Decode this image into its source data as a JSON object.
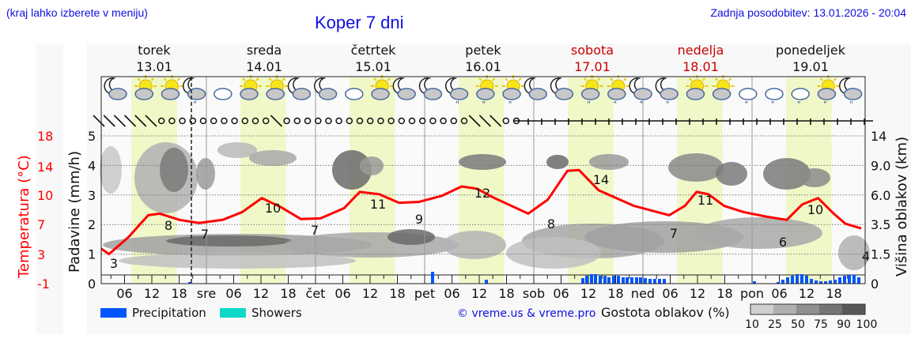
{
  "header": {
    "hint": "(kraj lahko izberete v meniju)",
    "title": "Koper 7 dni",
    "updated": "Zadnja posodobitev: 13.01.2026 - 20:04"
  },
  "days": [
    {
      "name": "torek",
      "date": "13.01",
      "weekend": false
    },
    {
      "name": "sreda",
      "date": "14.01",
      "weekend": false
    },
    {
      "name": "četrtek",
      "date": "15.01",
      "weekend": false
    },
    {
      "name": "petek",
      "date": "16.01",
      "weekend": false
    },
    {
      "name": "sobota",
      "date": "17.01",
      "weekend": true
    },
    {
      "name": "nedelja",
      "date": "18.01",
      "weekend": true
    },
    {
      "name": "ponedeljek",
      "date": "19.01",
      "weekend": false
    }
  ],
  "axes": {
    "temp_label": "Temperatura (°C)",
    "temp_ticks": [
      "18",
      "14",
      "10",
      "7",
      "3",
      "-1"
    ],
    "precip_label": "Padavine (mm/h)",
    "precip_ticks": [
      "5",
      "4",
      "3",
      "2",
      "1",
      "0"
    ],
    "cloud_label": "Višina oblakov (km)",
    "cloud_ticks": [
      "14",
      "9.0",
      "6.0",
      "3.5",
      "1.5",
      "0"
    ],
    "x_ticks": [
      "06",
      "12",
      "18",
      "sre",
      "06",
      "12",
      "18",
      "čet",
      "06",
      "12",
      "18",
      "pet",
      "06",
      "12",
      "18",
      "sob",
      "06",
      "12",
      "18",
      "ned",
      "06",
      "12",
      "18",
      "pon",
      "06",
      "12",
      "18"
    ]
  },
  "legend": {
    "precipitation": "Precipitation",
    "showers": "Showers",
    "copyright": "© vreme.us & vreme.pro",
    "density_label": "Gostota oblakov (%)",
    "density_ticks": [
      "10",
      "25",
      "50",
      "75",
      "90",
      "100"
    ],
    "precip_color": "#0055ff",
    "showers_color": "#10d8c8"
  },
  "colors": {
    "temp_line": "#ff0000",
    "day_band": "#f0f8c8",
    "weekend_text": "#cc0000",
    "header_blue": "#1010e0"
  },
  "chart_data": {
    "type": "line",
    "title": "Koper 7 dni",
    "xlabel": "",
    "ylabel": "Temperatura (°C)",
    "ylim": [
      -1,
      18
    ],
    "temperature_labels": [
      {
        "time": "13.01 02h",
        "value": 3
      },
      {
        "time": "13.01 15h",
        "value": 8
      },
      {
        "time": "14.01 00h",
        "value": 7
      },
      {
        "time": "14.01 12h",
        "value": 10
      },
      {
        "time": "14.01 22h",
        "value": 7
      },
      {
        "time": "15.01 13h",
        "value": 11
      },
      {
        "time": "15.01 21h",
        "value": 9
      },
      {
        "time": "16.01 13h",
        "value": 12
      },
      {
        "time": "17.01 03h",
        "value": 8
      },
      {
        "time": "17.01 14h",
        "value": 14
      },
      {
        "time": "18.01 05h",
        "value": 7
      },
      {
        "time": "18.01 15h",
        "value": 11
      },
      {
        "time": "19.01 06h",
        "value": 6
      },
      {
        "time": "19.01 14h",
        "value": 10
      },
      {
        "time": "19.01 23h",
        "value": 4
      }
    ],
    "precipitation_mm_h": {
      "note": "bars mostly 0.1-0.4 mm/h",
      "periods": [
        {
          "time": "13.01 20h",
          "value": 0.05
        },
        {
          "time": "16.01 00h",
          "value": 0.3
        },
        {
          "time": "16.01 12h",
          "value": 0.1
        },
        {
          "time": "17.01 08h-22h",
          "value": 0.35
        },
        {
          "time": "18.01 20h",
          "value": 0.1
        },
        {
          "time": "19.01 03h-23h",
          "value": 0.3
        }
      ]
    },
    "precip_ylim": [
      0,
      5
    ],
    "cloud_height_ticks_km": [
      0,
      1.5,
      3.5,
      6.0,
      9.0,
      14
    ],
    "legend": [
      "Precipitation",
      "Showers"
    ]
  }
}
